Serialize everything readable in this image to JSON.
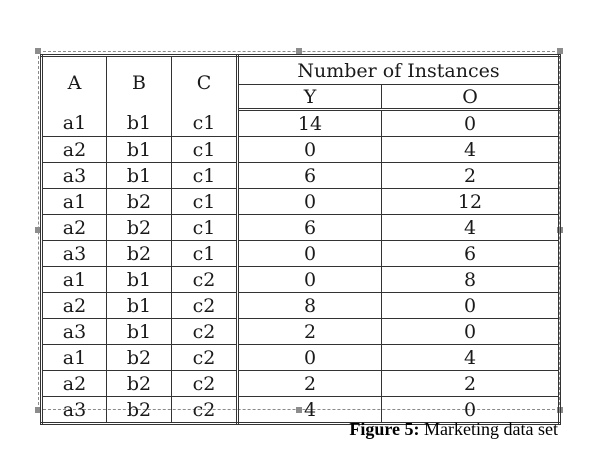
{
  "table": {
    "group_header": "Number of Instances",
    "col_headers": [
      "A",
      "B",
      "C"
    ],
    "sub_headers": [
      "Y",
      "O"
    ],
    "rows": [
      [
        "a1",
        "b1",
        "c1",
        "14",
        "0"
      ],
      [
        "a2",
        "b1",
        "c1",
        "0",
        "4"
      ],
      [
        "a3",
        "b1",
        "c1",
        "6",
        "2"
      ],
      [
        "a1",
        "b2",
        "c1",
        "0",
        "12"
      ],
      [
        "a2",
        "b2",
        "c1",
        "6",
        "4"
      ],
      [
        "a3",
        "b2",
        "c1",
        "0",
        "6"
      ],
      [
        "a1",
        "b1",
        "c2",
        "0",
        "8"
      ],
      [
        "a2",
        "b1",
        "c2",
        "8",
        "0"
      ],
      [
        "a3",
        "b1",
        "c2",
        "2",
        "0"
      ],
      [
        "a1",
        "b2",
        "c2",
        "0",
        "4"
      ],
      [
        "a2",
        "b2",
        "c2",
        "2",
        "2"
      ],
      [
        "a3",
        "b2",
        "c2",
        "4",
        "0"
      ]
    ]
  },
  "caption": {
    "label": "Figure 5:",
    "text": " Marketing data set"
  }
}
